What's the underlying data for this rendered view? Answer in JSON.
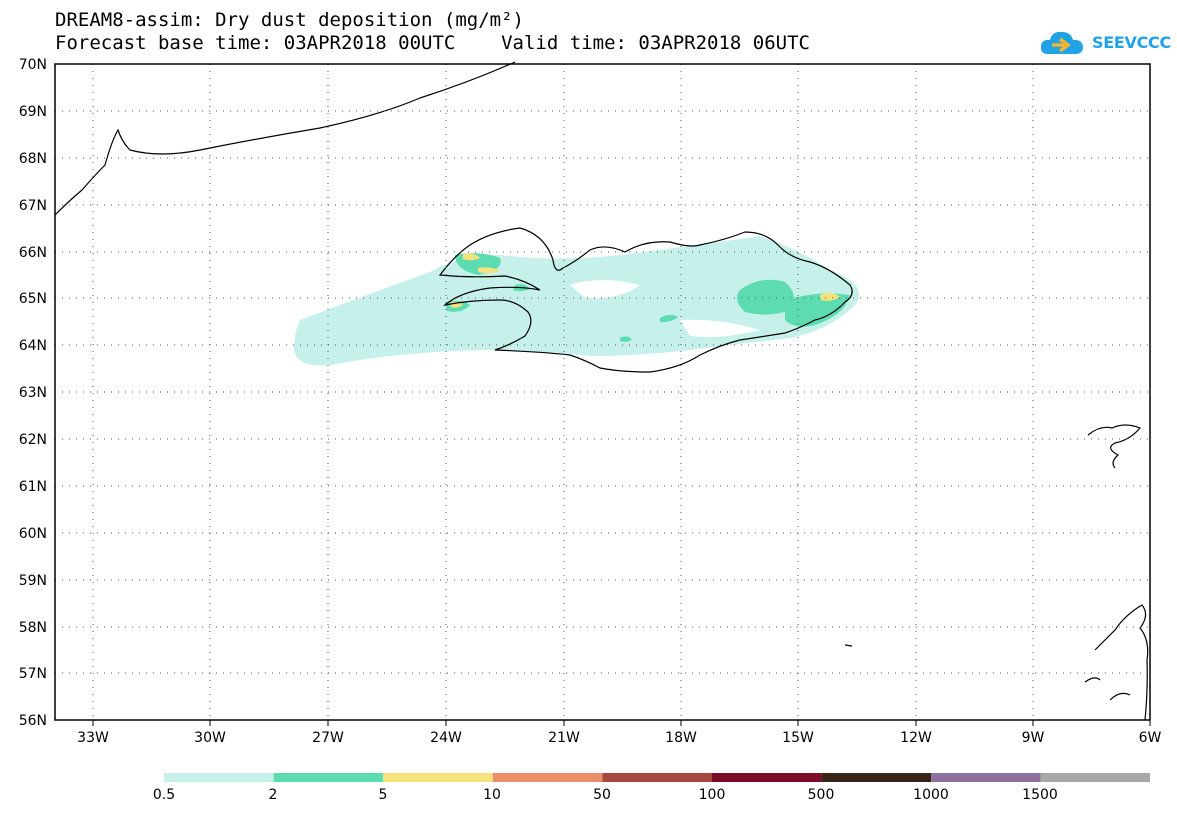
{
  "header": {
    "line1": "DREAM8-assim: Dry dust deposition (mg/m²)",
    "line2": "Forecast base time: 03APR2018 00UTC    Valid time: 03APR2018 06UTC"
  },
  "logo": {
    "text": "SEEVCCC",
    "color": "#1fa2e6"
  },
  "map": {
    "lon_range": [
      -34.5,
      -6
    ],
    "lat_range": [
      56,
      70
    ],
    "lon_ticks": [
      "33W",
      "30W",
      "27W",
      "24W",
      "21W",
      "18W",
      "15W",
      "12W",
      "9W",
      "6W"
    ],
    "lat_ticks": [
      "56N",
      "57N",
      "58N",
      "59N",
      "60N",
      "61N",
      "62N",
      "63N",
      "64N",
      "65N",
      "66N",
      "67N",
      "68N",
      "69N",
      "70N"
    ],
    "grid": "dotted"
  },
  "legend": {
    "colors": [
      "#c6f0ea",
      "#5ddcb2",
      "#f6e27c",
      "#ec8e6a",
      "#a8473e",
      "#7c0b2a",
      "#3a2416",
      "#8e6f9e",
      "#a8a8a8"
    ],
    "labels": [
      "0.5",
      "2",
      "5",
      "10",
      "50",
      "100",
      "500",
      "1000",
      "1500"
    ]
  }
}
